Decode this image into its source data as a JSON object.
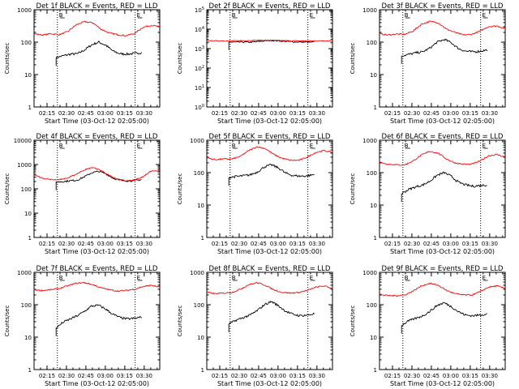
{
  "chart_data": [
    {
      "type": "line",
      "title": "Det 1f BLACK = Events, RED = LLD",
      "xlabel": "Start Time (03-Oct-12 02:05:00)",
      "ylabel": "Counts/sec",
      "yscale": "log",
      "ylim_decades": [
        0,
        3
      ],
      "ytick_labels": [
        "1",
        "10",
        "100",
        "1000"
      ],
      "xtick_labels": [
        "02:15",
        "02:30",
        "02:45",
        "03:00",
        "03:15",
        "03:30"
      ],
      "markers": [
        "B",
        "E"
      ],
      "grid": false,
      "series": [
        {
          "name": "BLACK = Events",
          "color": "#000000",
          "values_log10": [
            1.52,
            1.58,
            1.63,
            1.64,
            1.76,
            1.92,
            2.0,
            1.9,
            1.72,
            1.64,
            1.63,
            1.65,
            1.68
          ]
        },
        {
          "name": "RED = LLD",
          "color": "#ff0000",
          "values_log10": [
            2.26,
            2.22,
            2.26,
            2.23,
            2.32,
            2.53,
            2.63,
            2.6,
            2.4,
            2.28,
            2.23,
            2.2,
            2.27,
            2.46,
            2.52,
            2.47
          ]
        }
      ]
    },
    {
      "type": "line",
      "title": "Det 2f BLACK = Events, RED = LLD",
      "xlabel": "Start Time (03-Oct-12 02:05:00)",
      "ylabel": "Counts/sec",
      "yscale": "log",
      "ylim_decades": [
        0,
        5
      ],
      "ytick_labels": [
        "1",
        "10",
        "100",
        "1000",
        "10000",
        "100000"
      ],
      "ytick_style": "power",
      "xtick_labels": [
        "02:15",
        "02:30",
        "02:45",
        "03:00",
        "03:15",
        "03:30"
      ],
      "markers": [
        "B",
        "E"
      ],
      "grid": false,
      "series": [
        {
          "name": "BLACK = Events",
          "color": "#000000",
          "values_log10": [
            3.34,
            3.33,
            3.34,
            3.33,
            3.36,
            3.4,
            3.42,
            3.4,
            3.37,
            3.35,
            3.34,
            3.33,
            3.33
          ]
        },
        {
          "name": "RED = LLD",
          "color": "#ff0000",
          "values_log10": [
            3.4,
            3.4,
            3.4,
            3.4,
            3.41,
            3.42,
            3.43,
            3.43,
            3.42,
            3.41,
            3.4,
            3.4,
            3.4,
            3.4,
            3.4,
            3.4
          ]
        }
      ]
    },
    {
      "type": "line",
      "title": "Det 3f BLACK = Events, RED = LLD",
      "xlabel": "Start Time (03-Oct-12 02:05:00)",
      "ylabel": "Counts/sec",
      "yscale": "log",
      "ylim_decades": [
        0,
        3
      ],
      "ytick_labels": [
        "1",
        "10",
        "100",
        "1000"
      ],
      "xtick_labels": [
        "02:15",
        "02:30",
        "02:45",
        "03:00",
        "03:15",
        "03:30"
      ],
      "markers": [
        "B",
        "E"
      ],
      "grid": false,
      "series": [
        {
          "name": "BLACK = Events",
          "color": "#000000",
          "values_log10": [
            1.58,
            1.62,
            1.67,
            1.7,
            1.82,
            2.0,
            2.08,
            1.98,
            1.8,
            1.72,
            1.7,
            1.72,
            1.76
          ]
        },
        {
          "name": "RED = LLD",
          "color": "#ff0000",
          "values_log10": [
            2.26,
            2.22,
            2.25,
            2.24,
            2.34,
            2.55,
            2.64,
            2.6,
            2.4,
            2.3,
            2.22,
            2.24,
            2.34,
            2.48,
            2.5,
            2.42
          ]
        }
      ]
    },
    {
      "type": "line",
      "title": "Det 4f BLACK = Events, RED = LLD",
      "xlabel": "Start Time (03-Oct-12 02:05:00)",
      "ylabel": "Counts/sec",
      "yscale": "log",
      "ylim_decades": [
        0,
        4
      ],
      "ytick_labels": [
        "1",
        "10",
        "100",
        "1000",
        "10000"
      ],
      "xtick_labels": [
        "02:15",
        "02:30",
        "02:45",
        "03:00",
        "03:15",
        "03:30"
      ],
      "markers": [
        "B",
        "E"
      ],
      "grid": false,
      "series": [
        {
          "name": "BLACK = Events",
          "color": "#000000",
          "values_log10": [
            2.28,
            2.3,
            2.33,
            2.36,
            2.5,
            2.66,
            2.72,
            2.62,
            2.44,
            2.36,
            2.33,
            2.34,
            2.38
          ]
        },
        {
          "name": "RED = LLD",
          "color": "#ff0000",
          "values_log10": [
            2.58,
            2.44,
            2.38,
            2.38,
            2.44,
            2.6,
            2.78,
            2.88,
            2.76,
            2.54,
            2.38,
            2.32,
            2.36,
            2.5,
            2.74,
            2.72
          ]
        }
      ]
    },
    {
      "type": "line",
      "title": "Det 5f BLACK = Events, RED = LLD",
      "xlabel": "Start Time (03-Oct-12 02:05:00)",
      "ylabel": "Counts/sec",
      "yscale": "log",
      "ylim_decades": [
        0,
        3
      ],
      "ytick_labels": [
        "1",
        "10",
        "100",
        "1000"
      ],
      "xtick_labels": [
        "02:15",
        "02:30",
        "02:45",
        "03:00",
        "03:15",
        "03:30"
      ],
      "markers": [
        "B",
        "E"
      ],
      "grid": false,
      "series": [
        {
          "name": "BLACK = Events",
          "color": "#000000",
          "values_log10": [
            1.85,
            1.88,
            1.9,
            1.93,
            2.02,
            2.18,
            2.24,
            2.14,
            1.98,
            1.91,
            1.89,
            1.9,
            1.94
          ]
        },
        {
          "name": "RED = LLD",
          "color": "#ff0000",
          "values_log10": [
            2.46,
            2.4,
            2.42,
            2.42,
            2.5,
            2.68,
            2.8,
            2.74,
            2.56,
            2.44,
            2.38,
            2.38,
            2.48,
            2.62,
            2.68,
            2.62
          ]
        }
      ]
    },
    {
      "type": "line",
      "title": "Det 6f BLACK = Events, RED = LLD",
      "xlabel": "Start Time (03-Oct-12 02:05:00)",
      "ylabel": "Counts/sec",
      "yscale": "log",
      "ylim_decades": [
        0,
        3
      ],
      "ytick_labels": [
        "1",
        "10",
        "100",
        "1000"
      ],
      "xtick_labels": [
        "02:15",
        "02:30",
        "02:45",
        "03:00",
        "03:15",
        "03:30"
      ],
      "markers": [
        "B",
        "E"
      ],
      "grid": false,
      "series": [
        {
          "name": "BLACK = Events",
          "color": "#000000",
          "values_log10": [
            1.35,
            1.48,
            1.56,
            1.62,
            1.74,
            1.92,
            2.0,
            1.88,
            1.7,
            1.62,
            1.58,
            1.6,
            1.62
          ]
        },
        {
          "name": "RED = LLD",
          "color": "#ff0000",
          "values_log10": [
            2.32,
            2.26,
            2.24,
            2.24,
            2.36,
            2.54,
            2.66,
            2.6,
            2.42,
            2.3,
            2.26,
            2.26,
            2.36,
            2.52,
            2.56,
            2.48
          ]
        }
      ]
    },
    {
      "type": "line",
      "title": "Det 7f BLACK = Events, RED = LLD",
      "xlabel": "Start Time (03-Oct-12 02:05:00)",
      "ylabel": "Counts/sec",
      "yscale": "log",
      "ylim_decades": [
        0,
        3
      ],
      "ytick_labels": [
        "1",
        "10",
        "100",
        "1000"
      ],
      "xtick_labels": [
        "02:15",
        "02:30",
        "02:45",
        "03:00",
        "03:15",
        "03:30"
      ],
      "markers": [
        "B",
        "E"
      ],
      "grid": false,
      "series": [
        {
          "name": "BLACK = Events",
          "color": "#000000",
          "values_log10": [
            1.28,
            1.46,
            1.56,
            1.66,
            1.8,
            1.96,
            1.98,
            1.86,
            1.7,
            1.6,
            1.56,
            1.58,
            1.62
          ]
        },
        {
          "name": "RED = LLD",
          "color": "#ff0000",
          "values_log10": [
            2.46,
            2.44,
            2.46,
            2.5,
            2.58,
            2.66,
            2.68,
            2.62,
            2.52,
            2.46,
            2.42,
            2.44,
            2.48,
            2.56,
            2.6,
            2.54
          ]
        }
      ]
    },
    {
      "type": "line",
      "title": "Det 8f BLACK = Events, RED = LLD",
      "xlabel": "Start Time (03-Oct-12 02:05:00)",
      "ylabel": "Counts/sec",
      "yscale": "log",
      "ylim_decades": [
        0,
        3
      ],
      "ytick_labels": [
        "1",
        "10",
        "100",
        "1000"
      ],
      "xtick_labels": [
        "02:15",
        "02:30",
        "02:45",
        "03:00",
        "03:15",
        "03:30"
      ],
      "markers": [
        "B",
        "E"
      ],
      "grid": false,
      "series": [
        {
          "name": "BLACK = Events",
          "color": "#000000",
          "values_log10": [
            1.4,
            1.52,
            1.6,
            1.68,
            1.82,
            2.0,
            2.1,
            1.96,
            1.8,
            1.7,
            1.66,
            1.68,
            1.72
          ]
        },
        {
          "name": "RED = LLD",
          "color": "#ff0000",
          "values_log10": [
            2.38,
            2.34,
            2.36,
            2.38,
            2.48,
            2.62,
            2.68,
            2.6,
            2.46,
            2.38,
            2.36,
            2.38,
            2.44,
            2.54,
            2.58,
            2.5
          ]
        }
      ]
    },
    {
      "type": "line",
      "title": "Det 9f BLACK = Events, RED = LLD",
      "xlabel": "Start Time (03-Oct-12 02:05:00)",
      "ylabel": "Counts/sec",
      "yscale": "log",
      "ylim_decades": [
        0,
        3
      ],
      "ytick_labels": [
        "1",
        "10",
        "100",
        "1000"
      ],
      "xtick_labels": [
        "02:15",
        "02:30",
        "02:45",
        "03:00",
        "03:15",
        "03:30"
      ],
      "markers": [
        "B",
        "E"
      ],
      "grid": false,
      "series": [
        {
          "name": "BLACK = Events",
          "color": "#000000",
          "values_log10": [
            1.36,
            1.5,
            1.58,
            1.66,
            1.8,
            1.98,
            2.06,
            1.94,
            1.78,
            1.68,
            1.66,
            1.68,
            1.72
          ]
        },
        {
          "name": "RED = LLD",
          "color": "#ff0000",
          "values_log10": [
            2.32,
            2.28,
            2.28,
            2.3,
            2.42,
            2.58,
            2.66,
            2.6,
            2.44,
            2.34,
            2.3,
            2.3,
            2.4,
            2.54,
            2.58,
            2.5
          ]
        }
      ]
    }
  ]
}
